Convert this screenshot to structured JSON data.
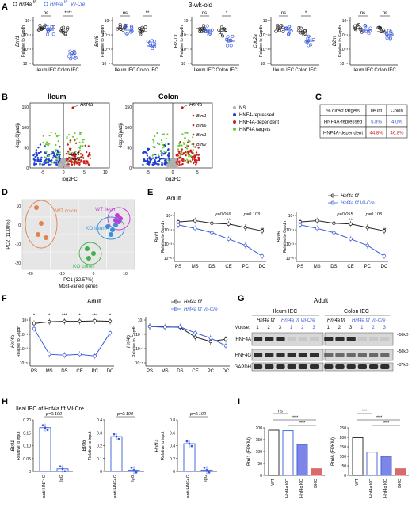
{
  "panel_A": {
    "letter": "A",
    "subtitle": "3-wk-old",
    "legend": [
      {
        "label": "Hnf4a",
        "sup": "f/f",
        "color": "#222222"
      },
      {
        "label": "Hnf4a",
        "sup": "f/f",
        "suffix": "Vil-Cre",
        "color": "#3a5bd9"
      }
    ],
    "ylabel_suffix": "Relative to Gapdh",
    "groups": [
      "Ileum IEC",
      "Colon IEC"
    ],
    "plots": [
      {
        "gene": "Btnl1",
        "ileum_sig": "ns",
        "colon_sig": "****",
        "ticks": [
          "10¹",
          "10⁻¹",
          "10⁻³",
          "10⁻⁵"
        ]
      },
      {
        "gene": "Btnl6",
        "ileum_sig": "ns",
        "colon_sig": "**",
        "ticks": [
          "10¹",
          "10⁻¹",
          "10⁻³",
          "10⁻⁵"
        ]
      },
      {
        "gene": "H2-T3",
        "ileum_sig": "ns",
        "colon_sig": "*",
        "ticks": [
          "10¹",
          "10⁻¹",
          "10⁻³",
          "10⁻⁵"
        ]
      },
      {
        "gene": "Cdc2a",
        "ileum_sig": "ns",
        "colon_sig": "*",
        "ticks": [
          "10¹",
          "10⁻¹",
          "10⁻³",
          "10⁻⁵"
        ]
      },
      {
        "gene": "B2m",
        "ileum_sig": "ns",
        "colon_sig": "ns",
        "ticks": [
          "10¹",
          "10⁻¹",
          "10⁻³",
          "10⁻⁵"
        ]
      }
    ]
  },
  "panel_B": {
    "letter": "B",
    "ileum_title": "Ileum",
    "colon_title": "Colon",
    "xlabel": "log2FC",
    "ylabel": "-log10(padj)",
    "ileum_xticks": [
      "-5",
      "0",
      "5",
      "10"
    ],
    "colon_xticks": [
      "-5",
      "0",
      "5"
    ],
    "yticks": [
      "0",
      "50",
      "100",
      "150"
    ],
    "legend": [
      {
        "label": "NS",
        "color": "#b0b0b0"
      },
      {
        "label": "HNF4-repressed",
        "color": "#1f3fcf"
      },
      {
        "label": "HNF4A-dependent",
        "color": "#cc1f1f"
      },
      {
        "label": "HNF4A targets",
        "color": "#66cc33"
      }
    ],
    "ileum_labels": [
      "Hnf4a",
      "Btnl1",
      "Btnl6"
    ],
    "colon_labels": [
      "Hnf4a",
      "Btnl1",
      "Btnl6",
      "Btnl1",
      "Btnl2"
    ]
  },
  "panel_C": {
    "letter": "C",
    "headers": [
      "% direct targets",
      "Ileum",
      "Colon"
    ],
    "rows": [
      {
        "name": "HNF4A-repressed",
        "ileum": "5.8%",
        "colon": "4.0%",
        "color": "#2b4fcf"
      },
      {
        "name": "HNF4A-dependent",
        "ileum": "44.8%",
        "colon": "46.8%",
        "color": "#cc2222"
      }
    ]
  },
  "panel_D": {
    "letter": "D",
    "xlabel": "PC1 (32.57%)",
    "ylabel": "PC2 (11.00%)",
    "caption": "Most-varied genes",
    "xticks": [
      "-20",
      "-10",
      "0",
      "10"
    ],
    "yticks": [
      "10",
      "0",
      "-10",
      "-20"
    ],
    "groups": [
      {
        "label": "WT colon",
        "color": "#e0824a"
      },
      {
        "label": "WT ileum",
        "color": "#c23bd6"
      },
      {
        "label": "KO ileum",
        "color": "#3a8fd9"
      },
      {
        "label": "KO colon",
        "color": "#3fb04a"
      }
    ]
  },
  "panel_E": {
    "letter": "E",
    "title": "Adult",
    "legend": [
      "Hnf4a f/f",
      "Hnf4a f/f Vil-Cre"
    ],
    "xcats": [
      "PS",
      "MS",
      "DS",
      "CE",
      "PC",
      "DC"
    ],
    "yticks": [
      "10¹",
      "10⁻¹",
      "10⁻³",
      "10⁻⁵"
    ],
    "plots": [
      {
        "gene": "Btnl1",
        "ylabel": "Relative to Gapdh",
        "anno": [
          "p=0.056",
          "p=0.103",
          "**",
          "**"
        ]
      },
      {
        "gene": "Btnl6",
        "ylabel": "Relative to Gapdh",
        "anno": [
          "p=0.055",
          "p=0.103",
          "**",
          "**"
        ]
      }
    ]
  },
  "panel_F": {
    "letter": "F",
    "title": "Adult",
    "legend": [
      "Hnf4a f/f",
      "Hnf4a f/f Vil-Cre"
    ],
    "xcats": [
      "PS",
      "MS",
      "DS",
      "CE",
      "PC",
      "DC"
    ],
    "plots": [
      {
        "gene": "Hnf4a",
        "ylabel": "Relative to Gapdh",
        "yticks": [
          "10¹",
          "10⁻¹",
          "10⁻³",
          "10⁻⁵"
        ],
        "stars": [
          "*",
          "*",
          "***",
          "*",
          "***",
          "*",
          "***"
        ]
      },
      {
        "gene": "Hnf4g",
        "ylabel": "Relative to Gapdh",
        "yticks": [
          "10¹",
          "10⁻¹",
          "10⁻³",
          "10⁻⁵"
        ],
        "stars": []
      }
    ]
  },
  "panel_G": {
    "letter": "G",
    "title": "Adult",
    "ileum_title": "Ileum IEC",
    "colon_title": "Colon IEC",
    "mouse_label": "Mouse:",
    "geno_wt": "Hnf4a f/f",
    "geno_ko": "Hnf4a f/f Vil-Cre",
    "lanes": [
      "1",
      "2",
      "3",
      "1",
      "2",
      "3",
      "1",
      "2",
      "3",
      "1",
      "2",
      "3"
    ],
    "blots": [
      "HNF4A",
      "HNF4G",
      "GAPDH"
    ],
    "markers": [
      "50kD",
      "50kD",
      "37kD"
    ]
  },
  "panel_H": {
    "letter": "H",
    "title": "Ileal IEC of Hnf4a f/f Vil-Cre",
    "plots": [
      {
        "gene": "Btnl1",
        "ylabel": "Relative to input",
        "p": "p=0.100",
        "yticks": [
          "0.20",
          "0.15",
          "0.10",
          "0.05",
          "0"
        ],
        "values": [
          0.17,
          0.01
        ],
        "max": 0.2
      },
      {
        "gene": "Btnl6",
        "ylabel": "Relative to input",
        "p": "p=0.100",
        "yticks": [
          "0.4",
          "0.3",
          "0.2",
          "0.1",
          "0"
        ],
        "values": [
          0.27,
          0.01
        ],
        "max": 0.4
      },
      {
        "gene": "Hnf1a",
        "ylabel": "Relative to input",
        "p": "p=0.100",
        "yticks": [
          "0.8",
          "0.6",
          "0.4",
          "0.2",
          "0"
        ],
        "values": [
          0.43,
          0.02
        ],
        "max": 0.8
      }
    ],
    "xcats": [
      "anti-HNF4G",
      "IgG"
    ]
  },
  "panel_I": {
    "letter": "I",
    "xcats": [
      "WT",
      "Hnf4a KO",
      "Hnf4g KO",
      "DKO"
    ],
    "plots": [
      {
        "gene": "Btnl1",
        "ylabel": "Btnl1 (FPKM)",
        "yticks": [
          "200",
          "150",
          "100",
          "50",
          "0"
        ],
        "values": [
          190,
          188,
          130,
          28
        ],
        "max": 200,
        "sig": [
          "ns",
          "****",
          "****"
        ]
      },
      {
        "gene": "Btnl6",
        "ylabel": "Btnl6 (FPKM)",
        "yticks": [
          "250",
          "200",
          "150",
          "100",
          "50",
          "0"
        ],
        "values": [
          198,
          122,
          100,
          35
        ],
        "max": 250,
        "sig": [
          "***",
          "****",
          "****"
        ]
      }
    ],
    "colors": [
      "#ffffff",
      "#ffffff",
      "#7d86e8",
      "#d96b6b"
    ],
    "edges": [
      "#222222",
      "#3a5bd9",
      "#3a5bd9",
      "#d96b6b"
    ]
  }
}
